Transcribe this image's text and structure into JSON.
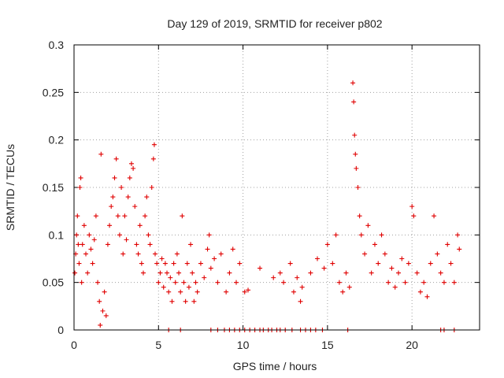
{
  "chart_data": {
    "type": "scatter",
    "title": "Day 129 of 2019, SRMTID for receiver p802",
    "xlabel": "GPS time / hours",
    "ylabel": "SRMTID / TECUs",
    "xlim": [
      0,
      24
    ],
    "ylim": [
      0,
      0.3
    ],
    "xticks": [
      0,
      5,
      10,
      15,
      20
    ],
    "xtick_labels": [
      "0",
      "5",
      "10",
      "15",
      "20"
    ],
    "yticks": [
      0,
      0.05,
      0.1,
      0.15,
      0.2,
      0.25,
      0.3
    ],
    "ytick_labels": [
      "0",
      "0.05",
      "0.1",
      "0.15",
      "0.2",
      "0.25",
      "0.3"
    ],
    "grid": true,
    "marker": "+",
    "series": [
      {
        "name": "SRMTID",
        "color": "#e00000",
        "points": [
          [
            0.05,
            0.06
          ],
          [
            0.1,
            0.08
          ],
          [
            0.15,
            0.1
          ],
          [
            0.2,
            0.12
          ],
          [
            0.25,
            0.09
          ],
          [
            0.3,
            0.07
          ],
          [
            0.35,
            0.15
          ],
          [
            0.4,
            0.16
          ],
          [
            0.45,
            0.05
          ],
          [
            0.5,
            0.09
          ],
          [
            0.6,
            0.11
          ],
          [
            0.7,
            0.08
          ],
          [
            0.8,
            0.06
          ],
          [
            0.9,
            0.1
          ],
          [
            1.0,
            0.085
          ],
          [
            1.1,
            0.07
          ],
          [
            1.2,
            0.095
          ],
          [
            1.3,
            0.12
          ],
          [
            1.4,
            0.05
          ],
          [
            1.5,
            0.03
          ],
          [
            1.55,
            0.005
          ],
          [
            1.6,
            0.185
          ],
          [
            1.7,
            0.02
          ],
          [
            1.8,
            0.04
          ],
          [
            1.9,
            0.015
          ],
          [
            2.0,
            0.09
          ],
          [
            2.1,
            0.11
          ],
          [
            2.2,
            0.13
          ],
          [
            2.3,
            0.14
          ],
          [
            2.4,
            0.16
          ],
          [
            2.5,
            0.18
          ],
          [
            2.6,
            0.12
          ],
          [
            2.7,
            0.1
          ],
          [
            2.8,
            0.15
          ],
          [
            2.9,
            0.08
          ],
          [
            3.0,
            0.12
          ],
          [
            3.1,
            0.095
          ],
          [
            3.2,
            0.14
          ],
          [
            3.3,
            0.16
          ],
          [
            3.4,
            0.175
          ],
          [
            3.5,
            0.17
          ],
          [
            3.6,
            0.13
          ],
          [
            3.7,
            0.09
          ],
          [
            3.8,
            0.08
          ],
          [
            3.9,
            0.11
          ],
          [
            4.0,
            0.07
          ],
          [
            4.1,
            0.06
          ],
          [
            4.2,
            0.12
          ],
          [
            4.3,
            0.14
          ],
          [
            4.4,
            0.1
          ],
          [
            4.5,
            0.09
          ],
          [
            4.6,
            0.15
          ],
          [
            4.7,
            0.18
          ],
          [
            4.75,
            0.195
          ],
          [
            4.8,
            0.08
          ],
          [
            4.9,
            0.07
          ],
          [
            5.0,
            0.05
          ],
          [
            5.1,
            0.06
          ],
          [
            5.2,
            0.075
          ],
          [
            5.3,
            0.045
          ],
          [
            5.4,
            0.07
          ],
          [
            5.5,
            0.06
          ],
          [
            5.6,
            0.04
          ],
          [
            5.7,
            0.055
          ],
          [
            5.8,
            0.03
          ],
          [
            5.9,
            0.07
          ],
          [
            6.0,
            0.05
          ],
          [
            6.1,
            0.08
          ],
          [
            6.2,
            0.06
          ],
          [
            6.3,
            0.04
          ],
          [
            6.4,
            0.12
          ],
          [
            6.5,
            0.05
          ],
          [
            6.6,
            0.03
          ],
          [
            6.7,
            0.07
          ],
          [
            6.8,
            0.045
          ],
          [
            6.9,
            0.09
          ],
          [
            7.0,
            0.06
          ],
          [
            7.1,
            0.03
          ],
          [
            7.2,
            0.05
          ],
          [
            7.3,
            0.04
          ],
          [
            7.5,
            0.07
          ],
          [
            7.7,
            0.055
          ],
          [
            7.9,
            0.085
          ],
          [
            8.0,
            0.1
          ],
          [
            8.1,
            0.065
          ],
          [
            8.3,
            0.075
          ],
          [
            8.5,
            0.05
          ],
          [
            8.7,
            0.08
          ],
          [
            9.0,
            0.04
          ],
          [
            9.2,
            0.06
          ],
          [
            9.4,
            0.085
          ],
          [
            9.6,
            0.05
          ],
          [
            9.8,
            0.07
          ],
          [
            10.1,
            0.04
          ],
          [
            10.3,
            0.042
          ],
          [
            11.0,
            0.065
          ],
          [
            11.8,
            0.055
          ],
          [
            12.2,
            0.06
          ],
          [
            12.4,
            0.05
          ],
          [
            12.8,
            0.07
          ],
          [
            13.0,
            0.04
          ],
          [
            13.2,
            0.055
          ],
          [
            13.4,
            0.03
          ],
          [
            13.5,
            0.045
          ],
          [
            14.0,
            0.06
          ],
          [
            14.4,
            0.075
          ],
          [
            14.8,
            0.065
          ],
          [
            15.0,
            0.09
          ],
          [
            15.3,
            0.07
          ],
          [
            15.5,
            0.1
          ],
          [
            15.7,
            0.05
          ],
          [
            15.9,
            0.04
          ],
          [
            16.1,
            0.06
          ],
          [
            16.3,
            0.045
          ],
          [
            16.5,
            0.26
          ],
          [
            16.55,
            0.24
          ],
          [
            16.6,
            0.205
          ],
          [
            16.65,
            0.185
          ],
          [
            16.7,
            0.17
          ],
          [
            16.8,
            0.15
          ],
          [
            16.9,
            0.12
          ],
          [
            17.0,
            0.1
          ],
          [
            17.2,
            0.08
          ],
          [
            17.4,
            0.11
          ],
          [
            17.6,
            0.06
          ],
          [
            17.8,
            0.09
          ],
          [
            18.0,
            0.07
          ],
          [
            18.2,
            0.1
          ],
          [
            18.4,
            0.08
          ],
          [
            18.6,
            0.05
          ],
          [
            18.8,
            0.065
          ],
          [
            19.0,
            0.045
          ],
          [
            19.2,
            0.06
          ],
          [
            19.4,
            0.075
          ],
          [
            19.6,
            0.05
          ],
          [
            19.8,
            0.07
          ],
          [
            20.0,
            0.13
          ],
          [
            20.1,
            0.12
          ],
          [
            20.3,
            0.06
          ],
          [
            20.5,
            0.04
          ],
          [
            20.7,
            0.05
          ],
          [
            20.9,
            0.035
          ],
          [
            21.1,
            0.07
          ],
          [
            21.3,
            0.12
          ],
          [
            21.5,
            0.08
          ],
          [
            21.7,
            0.06
          ],
          [
            21.9,
            0.05
          ],
          [
            22.1,
            0.09
          ],
          [
            22.3,
            0.07
          ],
          [
            22.5,
            0.05
          ],
          [
            22.7,
            0.1
          ],
          [
            22.8,
            0.085
          ]
        ]
      },
      {
        "name": "zero markers",
        "color": "#e00000",
        "points": [
          [
            5.6,
            0
          ],
          [
            6.3,
            0
          ],
          [
            8.1,
            0
          ],
          [
            8.5,
            0
          ],
          [
            8.9,
            0
          ],
          [
            9.2,
            0
          ],
          [
            9.5,
            0
          ],
          [
            9.8,
            0
          ],
          [
            10.1,
            0
          ],
          [
            10.4,
            0
          ],
          [
            10.7,
            0
          ],
          [
            11.0,
            0
          ],
          [
            11.2,
            0
          ],
          [
            11.5,
            0
          ],
          [
            11.7,
            0
          ],
          [
            12.0,
            0
          ],
          [
            12.2,
            0
          ],
          [
            12.5,
            0
          ],
          [
            12.9,
            0
          ],
          [
            13.4,
            0
          ],
          [
            13.7,
            0
          ],
          [
            14.0,
            0
          ],
          [
            14.3,
            0
          ],
          [
            14.7,
            0
          ],
          [
            16.2,
            0
          ],
          [
            21.7,
            0
          ],
          [
            21.9,
            0
          ],
          [
            22.5,
            0
          ]
        ]
      }
    ]
  }
}
